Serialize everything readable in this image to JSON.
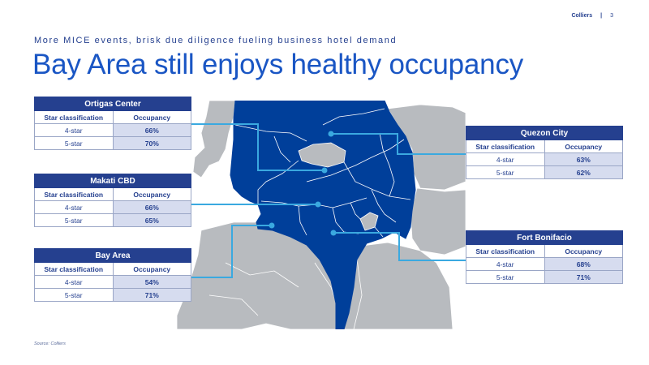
{
  "header": {
    "brand": "Colliers",
    "separator": "|",
    "page_number": "3"
  },
  "subtitle": "More MICE events, brisk due diligence fueling business hotel demand",
  "title": "Bay Area still enjoys healthy occupancy",
  "tables": {
    "ortigas": {
      "name": "Ortigas Center",
      "col1": "Star classification",
      "col2": "Occupancy",
      "rows": [
        {
          "label": "4-star",
          "value": "66%"
        },
        {
          "label": "5-star",
          "value": "70%"
        }
      ]
    },
    "makati": {
      "name": "Makati CBD",
      "col1": "Star classification",
      "col2": "Occupancy",
      "rows": [
        {
          "label": "4-star",
          "value": "66%"
        },
        {
          "label": "5-star",
          "value": "65%"
        }
      ]
    },
    "bayarea": {
      "name": "Bay Area",
      "col1": "Star classification",
      "col2": "Occupancy",
      "rows": [
        {
          "label": "4-star",
          "value": "54%"
        },
        {
          "label": "5-star",
          "value": "71%"
        }
      ]
    },
    "quezon": {
      "name": "Quezon City",
      "col1": "Star classification",
      "col2": "Occupancy",
      "rows": [
        {
          "label": "4-star",
          "value": "63%"
        },
        {
          "label": "5-star",
          "value": "62%"
        }
      ]
    },
    "bonifacio": {
      "name": "Fort Bonifacio",
      "col1": "Star classification",
      "col2": "Occupancy",
      "rows": [
        {
          "label": "4-star",
          "value": "68%"
        },
        {
          "label": "5-star",
          "value": "71%"
        }
      ]
    }
  },
  "source": "Source: Colliers",
  "colors": {
    "brand": "#25408f",
    "title": "#1a56c4",
    "map_fill": "#003f9a",
    "land": "#b8bbbf",
    "connector": "#3aa9e0",
    "value_cell": "#d6dcef"
  }
}
